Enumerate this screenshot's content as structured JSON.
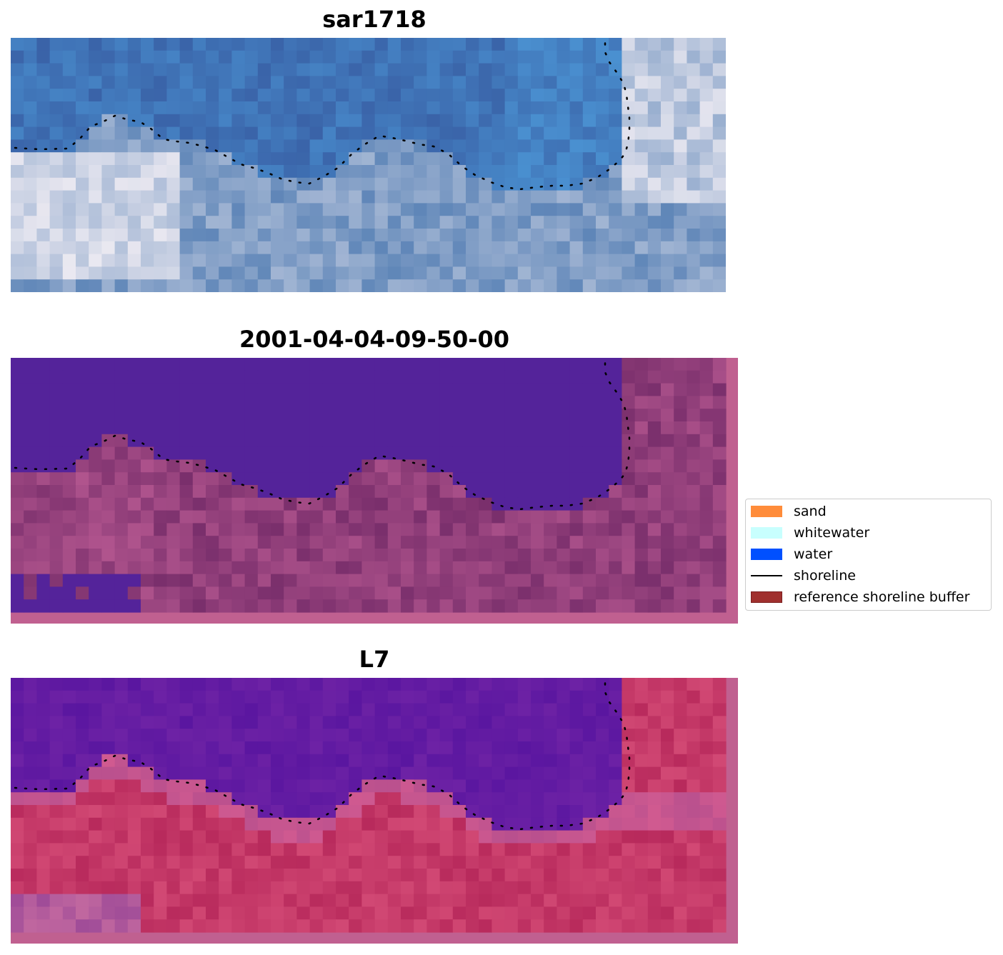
{
  "panels": [
    {
      "title": "sar1718",
      "style": "rgb"
    },
    {
      "title": "2001-04-04-09-50-00",
      "style": "classified"
    },
    {
      "title": "L7",
      "style": "index"
    }
  ],
  "legend": {
    "items": [
      {
        "label": "sand",
        "color": "#ff8c3a",
        "kind": "patch"
      },
      {
        "label": "whitewater",
        "color": "#c8fffe",
        "kind": "patch"
      },
      {
        "label": "water",
        "color": "#0050ff",
        "kind": "patch"
      },
      {
        "label": "shoreline",
        "color": "#000000",
        "kind": "line"
      },
      {
        "label": "reference shoreline buffer",
        "color": "#a0302e",
        "kind": "patch"
      }
    ]
  },
  "colors": {
    "rgb_water": "#3a63a8",
    "classified_water": "#54239a",
    "classified_land": "#8a3d7c",
    "index_water": "#5a16a0",
    "index_land": "#c42558",
    "buffer_border": "#c06090",
    "shoreline": "#000000"
  }
}
